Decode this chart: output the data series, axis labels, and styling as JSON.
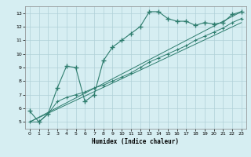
{
  "title": "",
  "xlabel": "Humidex (Indice chaleur)",
  "ylabel": "",
  "bg_color": "#d6eef2",
  "plot_bg_color": "#d6eef2",
  "grid_color": "#b0d0d8",
  "line_color": "#2e7d6e",
  "xlim": [
    -0.5,
    23.5
  ],
  "ylim": [
    4.5,
    13.5
  ],
  "xticks": [
    0,
    1,
    2,
    3,
    4,
    5,
    6,
    7,
    8,
    9,
    10,
    11,
    12,
    13,
    14,
    15,
    16,
    17,
    18,
    19,
    20,
    21,
    22,
    23
  ],
  "yticks": [
    5,
    6,
    7,
    8,
    9,
    10,
    11,
    12,
    13
  ],
  "curve1_x": [
    0,
    1,
    2,
    3,
    4,
    5,
    6,
    7,
    8,
    9,
    10,
    11,
    12,
    13,
    14,
    15,
    16,
    17,
    18,
    19,
    20,
    21,
    22,
    23
  ],
  "curve1_y": [
    5.8,
    5.0,
    5.6,
    7.5,
    9.1,
    9.0,
    6.5,
    7.0,
    9.5,
    10.5,
    11.0,
    11.5,
    12.0,
    13.1,
    13.1,
    12.6,
    12.4,
    12.4,
    12.1,
    12.3,
    12.2,
    12.3,
    12.9,
    13.1
  ],
  "curve2_x": [
    0,
    1,
    2,
    3,
    4,
    5,
    6,
    7,
    8,
    9,
    10,
    11,
    12,
    13,
    14,
    15,
    16,
    17,
    18,
    19,
    20,
    21,
    22,
    23
  ],
  "curve2_y": [
    5.0,
    5.0,
    5.6,
    6.5,
    6.8,
    7.0,
    7.2,
    7.5,
    7.7,
    8.0,
    8.3,
    8.6,
    9.0,
    9.4,
    9.7,
    10.0,
    10.3,
    10.6,
    11.0,
    11.3,
    11.6,
    11.9,
    12.3,
    12.6
  ],
  "curve3_x": [
    0,
    23
  ],
  "curve3_y": [
    5.0,
    13.1
  ],
  "curve4_x": [
    0,
    23
  ],
  "curve4_y": [
    5.0,
    12.3
  ]
}
